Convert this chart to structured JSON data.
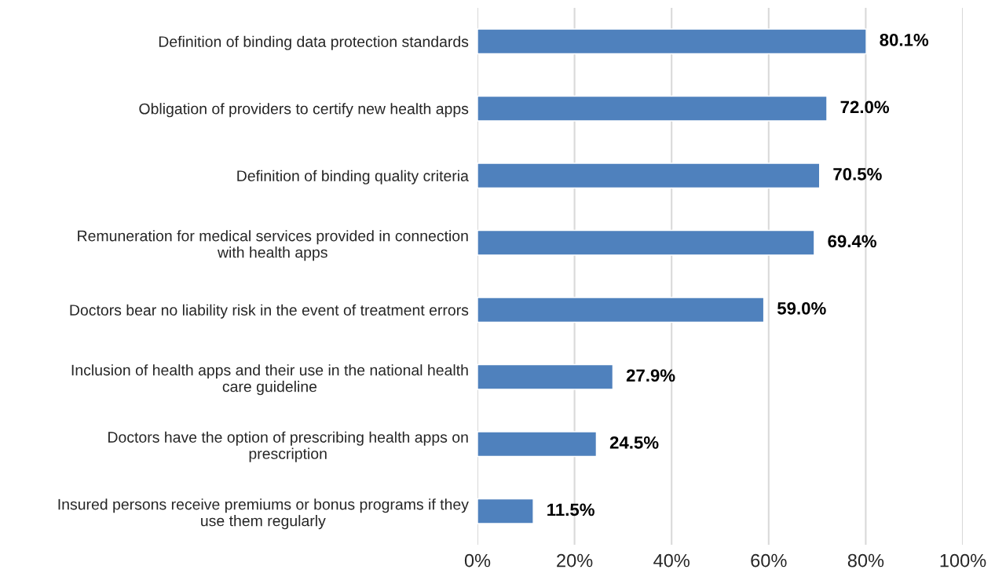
{
  "chart_data": {
    "type": "bar",
    "orientation": "horizontal",
    "color": "#4f81bd",
    "categories": [
      "Definition of binding data protection standards",
      "Obligation of providers to certify new health apps",
      "Definition of binding quality criteria",
      "Remuneration for medical services provided in connection\nwith health apps",
      "Doctors bear no liability risk in the event of treatment errors",
      "Inclusion of health apps and their use in the national health\ncare guideline",
      "Doctors have the option of prescribing health apps on\nprescription",
      "Insured persons receive premiums or bonus programs if they\nuse them regularly"
    ],
    "values": [
      80.1,
      72.0,
      70.5,
      69.4,
      59.0,
      27.9,
      24.5,
      11.5
    ],
    "value_labels": [
      "80.1%",
      "72.0%",
      "70.5%",
      "69.4%",
      "59.0%",
      "27.9%",
      "24.5%",
      "11.5%"
    ],
    "xlim": [
      0,
      100
    ],
    "xticks": [
      {
        "value": 0,
        "label": "0%"
      },
      {
        "value": 20,
        "label": "20%"
      },
      {
        "value": 40,
        "label": "40%"
      },
      {
        "value": 60,
        "label": "60%"
      },
      {
        "value": 80,
        "label": "80%"
      },
      {
        "value": 100,
        "label": "100%"
      }
    ],
    "grid": "x",
    "legend": false
  }
}
